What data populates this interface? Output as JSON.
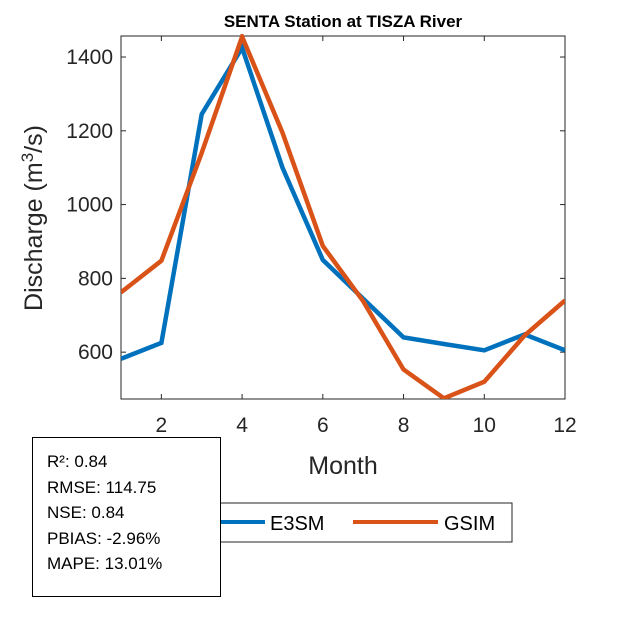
{
  "chart_data": {
    "type": "line",
    "title": "SENTA  Station at  TISZA  River",
    "xlabel": "Month",
    "ylabel": "Discharge (m³/s)",
    "ylabel_parts": {
      "pre": "Discharge (m",
      "sup": "3",
      "post": "/s)"
    },
    "x": [
      1,
      2,
      3,
      4,
      5,
      6,
      7,
      8,
      9,
      10,
      11,
      12
    ],
    "xlim": [
      1,
      12
    ],
    "ylim": [
      473,
      1457
    ],
    "xticks": [
      2,
      4,
      6,
      8,
      10,
      12
    ],
    "xtick_labels": [
      "2",
      "4",
      "6",
      "8",
      "10",
      "12"
    ],
    "yticks": [
      600,
      800,
      1000,
      1200,
      1400
    ],
    "ytick_labels": [
      "600",
      "800",
      "1000",
      "1200",
      "1400"
    ],
    "grid": false,
    "legend_placement": "bottom-center",
    "series": [
      {
        "name": "E3SM",
        "color": "#0072BD",
        "values": [
          582,
          625,
          1245,
          1425,
          1100,
          850,
          745,
          640,
          622,
          605,
          648,
          605
        ]
      },
      {
        "name": "GSIM",
        "color": "#D95319",
        "values": [
          762,
          848,
          1140,
          1455,
          1195,
          888,
          738,
          553,
          475,
          520,
          645,
          740
        ]
      }
    ]
  },
  "stats": {
    "lines": [
      "R²: 0.84",
      "RMSE: 114.75",
      "NSE: 0.84",
      "PBIAS: -2.96%",
      "MAPE: 13.01%"
    ]
  }
}
